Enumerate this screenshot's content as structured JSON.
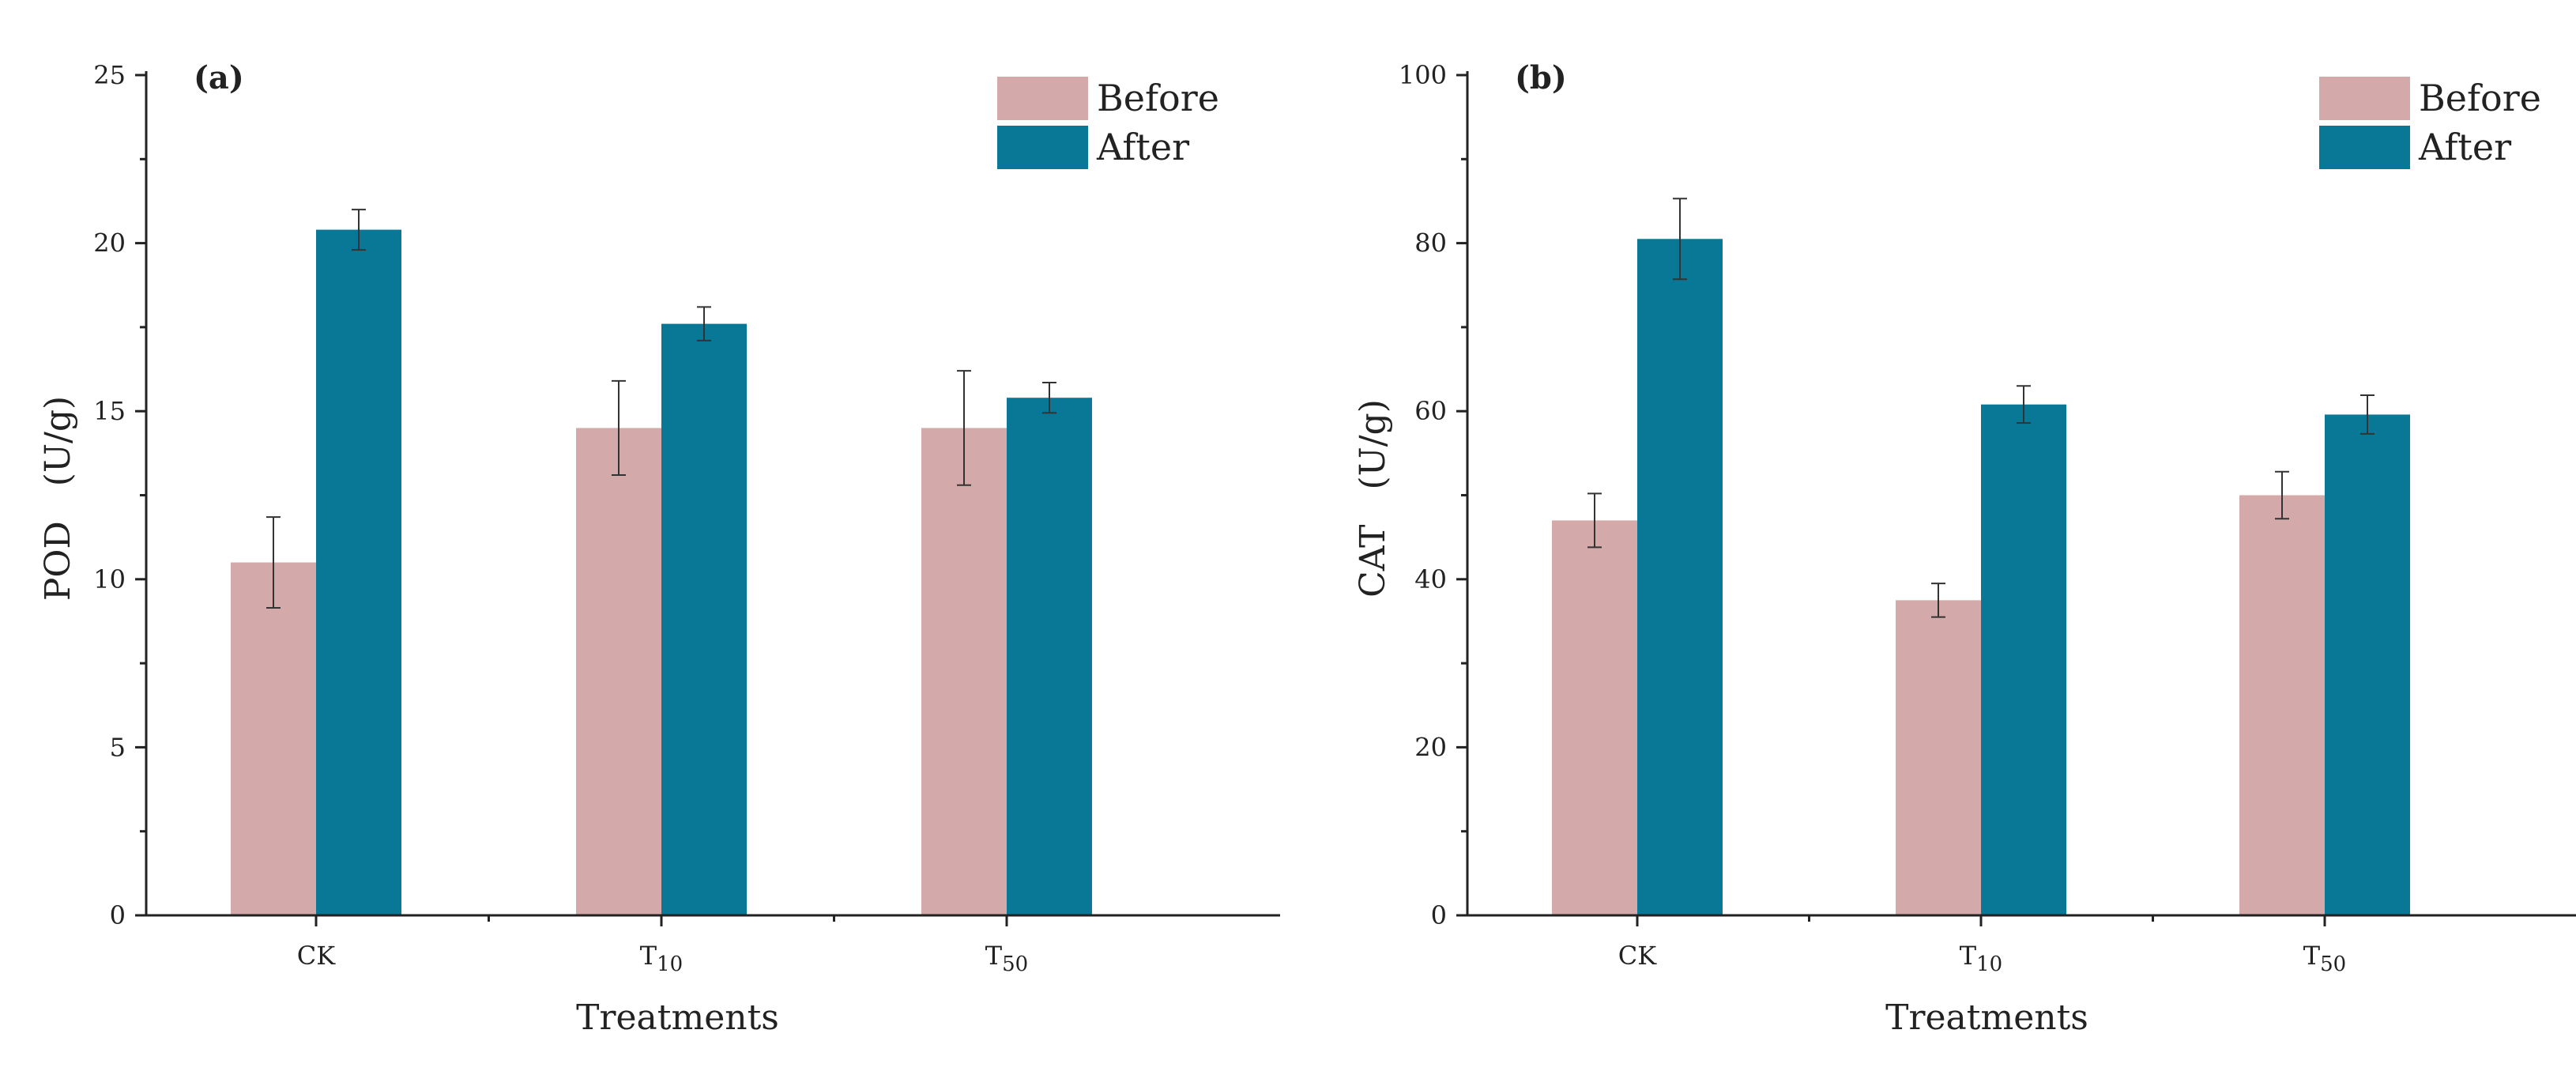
{
  "colors": {
    "before": "#d4a9aa",
    "after": "#097896",
    "axis": "#222222"
  },
  "chart_data": [
    {
      "type": "bar",
      "panel_label": "(a)",
      "categories": [
        {
          "main": "CK",
          "sub": ""
        },
        {
          "main": "T",
          "sub": "10"
        },
        {
          "main": "T",
          "sub": "50"
        }
      ],
      "series": [
        {
          "name": "Before",
          "values": [
            10.5,
            14.5,
            14.5
          ],
          "errors": [
            1.35,
            1.4,
            1.7
          ]
        },
        {
          "name": "After",
          "values": [
            20.4,
            17.6,
            15.4
          ],
          "errors": [
            0.6,
            0.5,
            0.45
          ]
        }
      ],
      "xlabel": "Treatments",
      "ylabel": "POD　(U/g)",
      "ylim": [
        0,
        25
      ],
      "yticks": [
        0,
        5,
        10,
        15,
        20,
        25
      ],
      "ytick_labels": [
        "0",
        "5",
        "10",
        "15",
        "20",
        "25"
      ],
      "legend_position": "top-right"
    },
    {
      "type": "bar",
      "panel_label": "(b)",
      "categories": [
        {
          "main": "CK",
          "sub": ""
        },
        {
          "main": "T",
          "sub": "10"
        },
        {
          "main": "T",
          "sub": "50"
        }
      ],
      "series": [
        {
          "name": "Before",
          "values": [
            47,
            37.5,
            50
          ],
          "errors": [
            3.2,
            2.0,
            2.8
          ]
        },
        {
          "name": "After",
          "values": [
            80.5,
            60.8,
            59.6
          ],
          "errors": [
            4.8,
            2.2,
            2.3
          ]
        }
      ],
      "xlabel": "Treatments",
      "ylabel": "CAT　(U/g)",
      "ylim": [
        0,
        100
      ],
      "yticks": [
        0,
        20,
        40,
        60,
        80,
        100
      ],
      "ytick_labels": [
        "0",
        "20",
        "40",
        "60",
        "80",
        "100"
      ],
      "legend_position": "top-right"
    }
  ]
}
